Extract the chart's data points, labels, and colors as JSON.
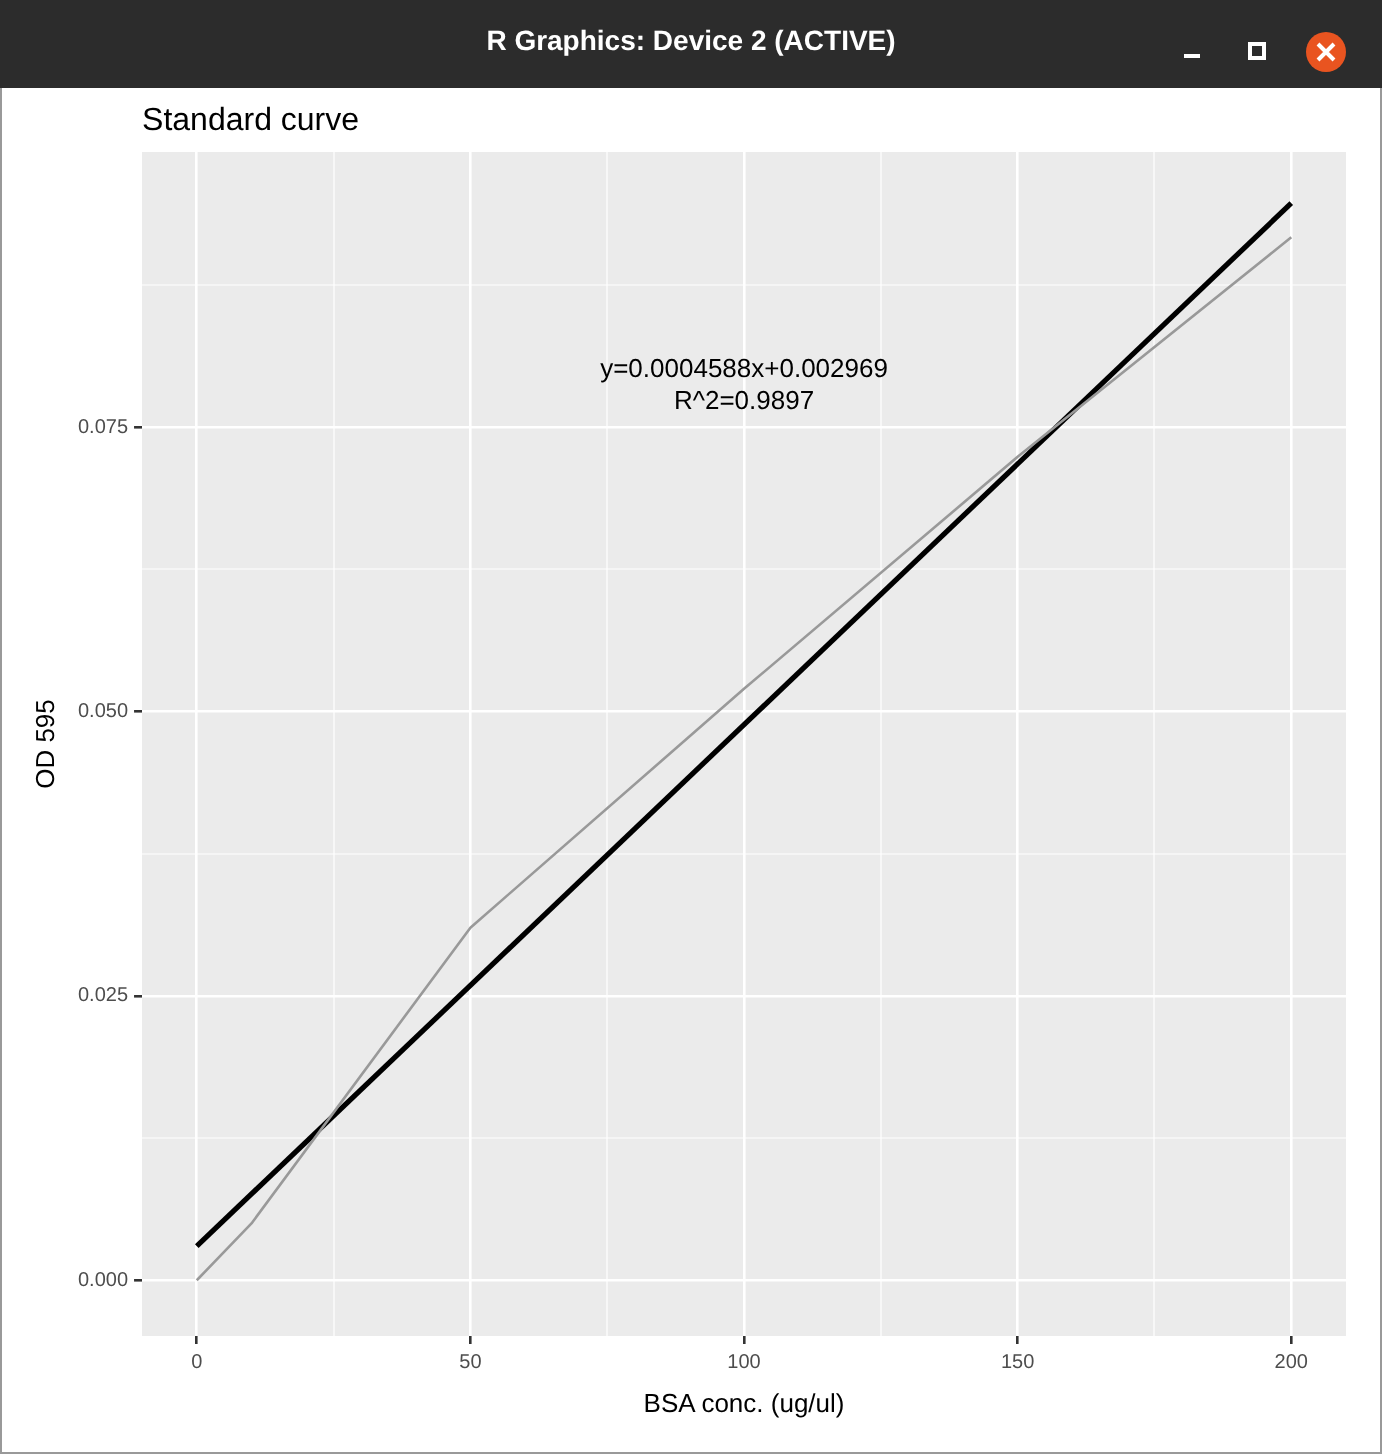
{
  "chart_data": {
    "type": "line",
    "title": "Standard curve",
    "xlabel": "BSA conc. (ug/ul)",
    "ylabel": "OD 595",
    "annotations": [
      "R Graphics: Device 2 (ACTIVE)",
      "y=0.0004588x+0.002969",
      "R^2=0.9897"
    ],
    "series": [
      {
        "color": "#999999",
        "x": [
          0,
          10,
          50,
          100,
          150,
          200
        ],
        "values": [
          0,
          0.005,
          0.031,
          0.052,
          0.0724,
          0.0917
        ]
      },
      {
        "color": "#000000",
        "x": [
          0,
          200
        ],
        "values": [
          0.003,
          0.0947
        ]
      }
    ],
    "xlim": [
      -10,
      210
    ],
    "xticks": [
      0,
      {
        "value": 25,
        "label": null
      },
      50,
      {
        "value": 75,
        "label": null
      },
      100,
      {
        "value": 125,
        "label": null
      },
      150,
      {
        "value": 175,
        "label": null
      },
      200
    ],
    "ylim": [
      -0.0049,
      0.0992
    ],
    "yticks": [
      {
        "value": 0,
        "label": "0.000"
      },
      {
        "value": 0.0125,
        "label": null
      },
      {
        "value": 0.025,
        "label": "0.025"
      },
      {
        "value": 0.0375,
        "label": null
      },
      {
        "value": 0.05,
        "label": "0.050"
      },
      {
        "value": 0.0625,
        "label": null
      },
      {
        "value": 0.075,
        "label": "0.075"
      },
      {
        "value": 0.0875,
        "label": null
      }
    ],
    "grid": true,
    "legend": false,
    "marker": "none",
    "line_style": "solid"
  }
}
